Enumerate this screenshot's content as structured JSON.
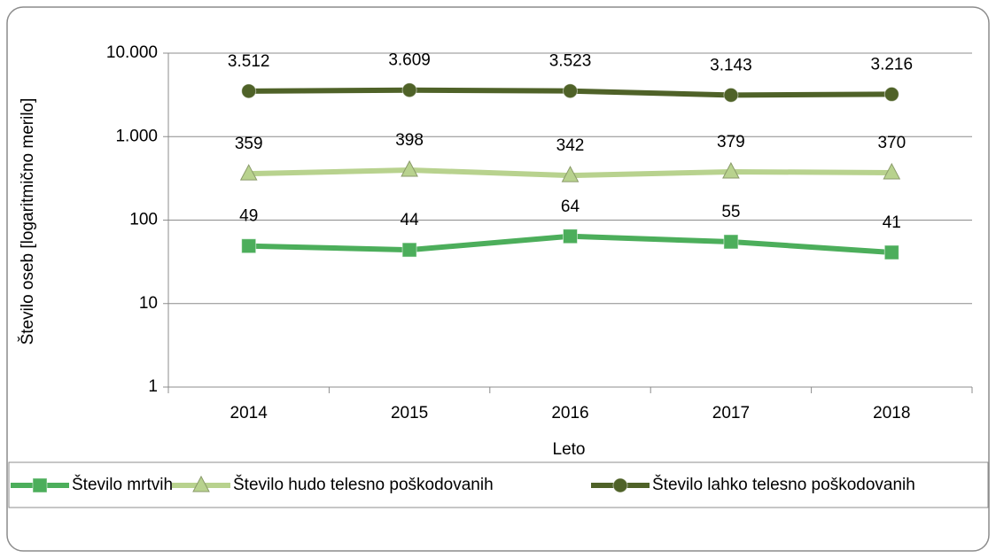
{
  "chart_data": {
    "type": "line",
    "categories": [
      "2014",
      "2015",
      "2016",
      "2017",
      "2018"
    ],
    "series": [
      {
        "name": "Število mrtvih",
        "color": "#4cae5b",
        "marker": "square",
        "values": [
          49,
          44,
          64,
          55,
          41
        ]
      },
      {
        "name": "Število hudo telesno poškodovanih",
        "color": "#b8d28e",
        "marker": "triangle",
        "values": [
          359,
          398,
          342,
          379,
          370
        ]
      },
      {
        "name": "Število lahko telesno poškodovanih",
        "color": "#4f6228",
        "marker": "circle",
        "values": [
          3512,
          3609,
          3523,
          3143,
          3216
        ],
        "value_labels": [
          "3.512",
          "3.609",
          "3.523",
          "3.143",
          "3.216"
        ]
      }
    ],
    "ylim": [
      1,
      10000
    ],
    "yticks": [
      1,
      10,
      100,
      {
        "value": 1000,
        "label": "1.000"
      },
      {
        "value": 10000,
        "label": "10.000"
      }
    ],
    "log_y": true,
    "grid": true,
    "x_label": "Leto",
    "y_label": "Število oseb [logaritmično merilo]",
    "legend": "bottom"
  }
}
